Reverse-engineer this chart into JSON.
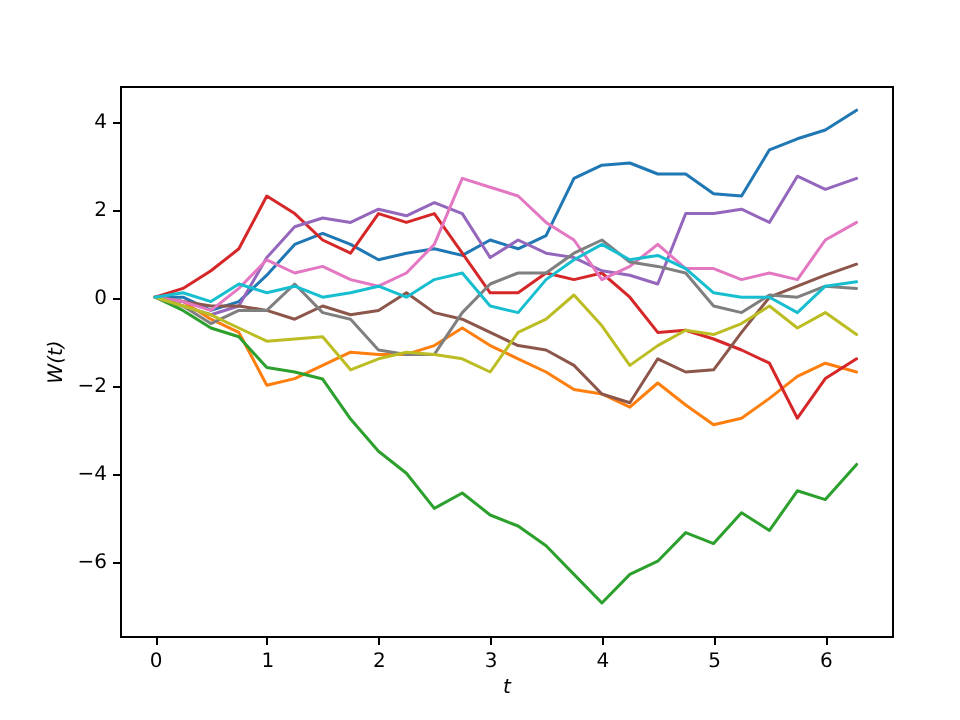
{
  "chart_data": {
    "type": "line",
    "xlabel": "t",
    "ylabel": "W(t)",
    "xlim": [
      -0.314,
      6.597
    ],
    "ylim": [
      -7.7,
      4.8
    ],
    "xticks": [
      0,
      1,
      2,
      3,
      4,
      5,
      6
    ],
    "yticks": [
      -6,
      -4,
      -2,
      0,
      2,
      4
    ],
    "grid": false,
    "legend": false,
    "marker": "none",
    "line_style": "solid",
    "x": [
      0,
      0.25,
      0.5,
      0.75,
      1,
      1.25,
      1.5,
      1.75,
      2,
      2.25,
      2.5,
      2.75,
      3,
      3.25,
      3.5,
      3.75,
      4,
      4.25,
      4.5,
      4.75,
      5,
      5.25,
      5.5,
      5.75,
      6,
      6.28
    ],
    "series": [
      {
        "color": "#1f77b4",
        "values": [
          0,
          0,
          -0.3,
          -0.1,
          0.5,
          1.2,
          1.45,
          1.2,
          0.85,
          1.0,
          1.1,
          0.95,
          1.3,
          1.1,
          1.4,
          2.7,
          3.0,
          3.05,
          2.8,
          2.8,
          2.35,
          2.3,
          3.35,
          3.6,
          3.8,
          4.25
        ]
      },
      {
        "color": "#ff7f0e",
        "values": [
          0,
          -0.1,
          -0.5,
          -0.8,
          -2.0,
          -1.85,
          -1.55,
          -1.25,
          -1.3,
          -1.3,
          -1.1,
          -0.7,
          -1.1,
          -1.4,
          -1.7,
          -2.1,
          -2.2,
          -2.5,
          -1.95,
          -2.45,
          -2.9,
          -2.75,
          -2.3,
          -1.8,
          -1.5,
          -1.7
        ]
      },
      {
        "color": "#2ca02c",
        "values": [
          0,
          -0.3,
          -0.7,
          -0.9,
          -1.6,
          -1.7,
          -1.86,
          -2.77,
          -3.5,
          -4.0,
          -4.8,
          -4.45,
          -4.95,
          -5.2,
          -5.65,
          -6.3,
          -6.95,
          -6.3,
          -6.0,
          -5.35,
          -5.6,
          -4.9,
          -5.3,
          -4.4,
          -4.6,
          -3.8
        ]
      },
      {
        "color": "#d62728",
        "values": [
          0,
          0.2,
          0.6,
          1.1,
          2.3,
          1.9,
          1.3,
          1.0,
          1.9,
          1.7,
          1.9,
          1.0,
          0.1,
          0.1,
          0.55,
          0.4,
          0.55,
          0,
          -0.8,
          -0.75,
          -0.95,
          -1.2,
          -1.5,
          -2.75,
          -1.85,
          -1.4
        ]
      },
      {
        "color": "#9467bd",
        "values": [
          0,
          -0.2,
          -0.4,
          -0.2,
          0.9,
          1.6,
          1.8,
          1.7,
          2.0,
          1.85,
          2.15,
          1.9,
          0.9,
          1.3,
          1.0,
          0.9,
          0.6,
          0.5,
          0.3,
          1.9,
          1.9,
          2.0,
          1.7,
          2.75,
          2.45,
          2.7
        ]
      },
      {
        "color": "#8c564b",
        "values": [
          0,
          -0.1,
          -0.2,
          -0.2,
          -0.3,
          -0.5,
          -0.2,
          -0.4,
          -0.3,
          0.1,
          -0.35,
          -0.5,
          -0.8,
          -1.1,
          -1.2,
          -1.55,
          -2.2,
          -2.4,
          -1.4,
          -1.7,
          -1.65,
          -0.8,
          0,
          0.25,
          0.5,
          0.75
        ]
      },
      {
        "color": "#e377c2",
        "values": [
          0,
          -0.1,
          -0.3,
          0.2,
          0.85,
          0.55,
          0.7,
          0.4,
          0.25,
          0.55,
          1.2,
          2.7,
          2.5,
          2.3,
          1.7,
          1.3,
          0.4,
          0.7,
          1.2,
          0.65,
          0.65,
          0.4,
          0.55,
          0.4,
          1.3,
          1.7
        ]
      },
      {
        "color": "#7f7f7f",
        "values": [
          0,
          -0.2,
          -0.6,
          -0.3,
          -0.3,
          0.3,
          -0.35,
          -0.5,
          -1.2,
          -1.3,
          -1.3,
          -0.35,
          0.3,
          0.55,
          0.55,
          1.0,
          1.3,
          0.8,
          0.7,
          0.55,
          -0.2,
          -0.35,
          0.05,
          0,
          0.25,
          0.2
        ]
      },
      {
        "color": "#bcbd22",
        "values": [
          0,
          -0.2,
          -0.4,
          -0.7,
          -1.0,
          -0.95,
          -0.9,
          -1.65,
          -1.4,
          -1.25,
          -1.3,
          -1.4,
          -1.7,
          -0.8,
          -0.5,
          0.05,
          -0.65,
          -1.55,
          -1.1,
          -0.75,
          -0.85,
          -0.6,
          -0.2,
          -0.7,
          -0.35,
          -0.85
        ]
      },
      {
        "color": "#17becf",
        "values": [
          0,
          0.1,
          -0.1,
          0.3,
          0.1,
          0.25,
          0,
          0.1,
          0.25,
          0,
          0.4,
          0.55,
          -0.2,
          -0.35,
          0.4,
          0.85,
          1.2,
          0.85,
          0.95,
          0.65,
          0.1,
          0,
          0,
          -0.35,
          0.25,
          0.35
        ]
      }
    ]
  }
}
